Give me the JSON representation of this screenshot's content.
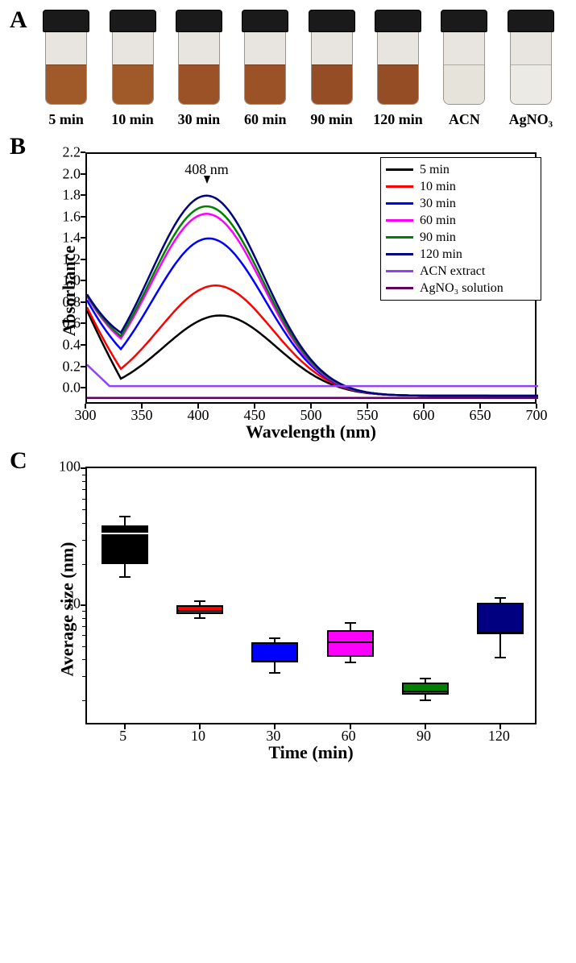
{
  "panelA": {
    "label": "A",
    "vials": [
      {
        "label": "5 min",
        "liquid_color": "#a05a2a"
      },
      {
        "label": "10 min",
        "liquid_color": "#a05a2a"
      },
      {
        "label": "30 min",
        "liquid_color": "#9a5226"
      },
      {
        "label": "60 min",
        "liquid_color": "#9a5226"
      },
      {
        "label": "90 min",
        "liquid_color": "#944d24"
      },
      {
        "label": "120 min",
        "liquid_color": "#944d24"
      },
      {
        "label": "ACN",
        "liquid_color": "#e6e3da"
      },
      {
        "label": "AgNO₃",
        "liquid_color": "#eceae4"
      }
    ]
  },
  "panelB": {
    "label": "B",
    "type": "line",
    "xlabel": "Wavelength (nm)",
    "ylabel": "Absorbance",
    "xlim": [
      300,
      700
    ],
    "ylim": [
      -0.15,
      2.2
    ],
    "xticks": [
      300,
      350,
      400,
      450,
      500,
      550,
      600,
      650,
      700
    ],
    "yticks": [
      0.0,
      0.2,
      0.4,
      0.6,
      0.8,
      1.0,
      1.2,
      1.4,
      1.6,
      1.8,
      2.0,
      2.2
    ],
    "peak_label": "408 nm",
    "peak_x": 408,
    "title_fontsize": 18,
    "label_fontsize": 22,
    "tick_fontsize": 18,
    "line_width": 2.5,
    "background_color": "#ffffff",
    "border_color": "#000000",
    "legend_position": "top-right",
    "series": [
      {
        "name": "5 min",
        "color": "#000000",
        "peak": 0.75,
        "peak_x": 418
      },
      {
        "name": "10 min",
        "color": "#ff0000",
        "peak": 1.03,
        "peak_x": 414
      },
      {
        "name": "30 min",
        "color": "#0000ff",
        "peak": 1.47,
        "peak_x": 408
      },
      {
        "name": "60 min",
        "color": "#ff00ff",
        "peak": 1.7,
        "peak_x": 406
      },
      {
        "name": "90 min",
        "color": "#008000",
        "peak": 1.77,
        "peak_x": 406
      },
      {
        "name": "120 min",
        "color": "#000080",
        "peak": 1.87,
        "peak_x": 406
      },
      {
        "name": "ACN extract",
        "color": "#9040ff",
        "flat": 0.03
      },
      {
        "name": "AgNO₃ solution",
        "color": "#600060",
        "flat": -0.08
      }
    ]
  },
  "panelC": {
    "label": "C",
    "type": "boxplot",
    "xlabel": "Time (min)",
    "ylabel": "Average size (nm)",
    "yscale": "log",
    "ylim": [
      1.3,
      100
    ],
    "yticks_major": [
      10,
      100
    ],
    "xticks": [
      "5",
      "10",
      "30",
      "60",
      "90",
      "120"
    ],
    "label_fontsize": 22,
    "tick_fontsize": 18,
    "box_border": "#000000",
    "box_border_width": 2,
    "background_color": "#ffffff",
    "boxes": [
      {
        "x": "5",
        "color": "#000000",
        "q1": 20,
        "median": 34,
        "q3": 38,
        "wlow": 16,
        "whigh": 44,
        "median_color": "#ffffff"
      },
      {
        "x": "10",
        "color": "#ff0000",
        "q1": 8.6,
        "median": 9.3,
        "q3": 10.0,
        "wlow": 8.0,
        "whigh": 10.6,
        "median_color": "#000000"
      },
      {
        "x": "30",
        "color": "#0000ff",
        "q1": 3.8,
        "median": 4.0,
        "q3": 5.3,
        "wlow": 3.2,
        "whigh": 5.7,
        "median_color": "#000000"
      },
      {
        "x": "60",
        "color": "#ff00ff",
        "q1": 4.2,
        "median": 5.5,
        "q3": 6.5,
        "wlow": 3.8,
        "whigh": 7.4,
        "median_color": "#000000"
      },
      {
        "x": "90",
        "color": "#008000",
        "q1": 2.2,
        "median": 2.4,
        "q3": 2.7,
        "wlow": 2.0,
        "whigh": 2.9,
        "median_color": "#000000"
      },
      {
        "x": "120",
        "color": "#000080",
        "q1": 6.2,
        "median": 6.4,
        "q3": 10.4,
        "wlow": 4.1,
        "whigh": 11.2,
        "median_color": "#000000"
      }
    ]
  }
}
